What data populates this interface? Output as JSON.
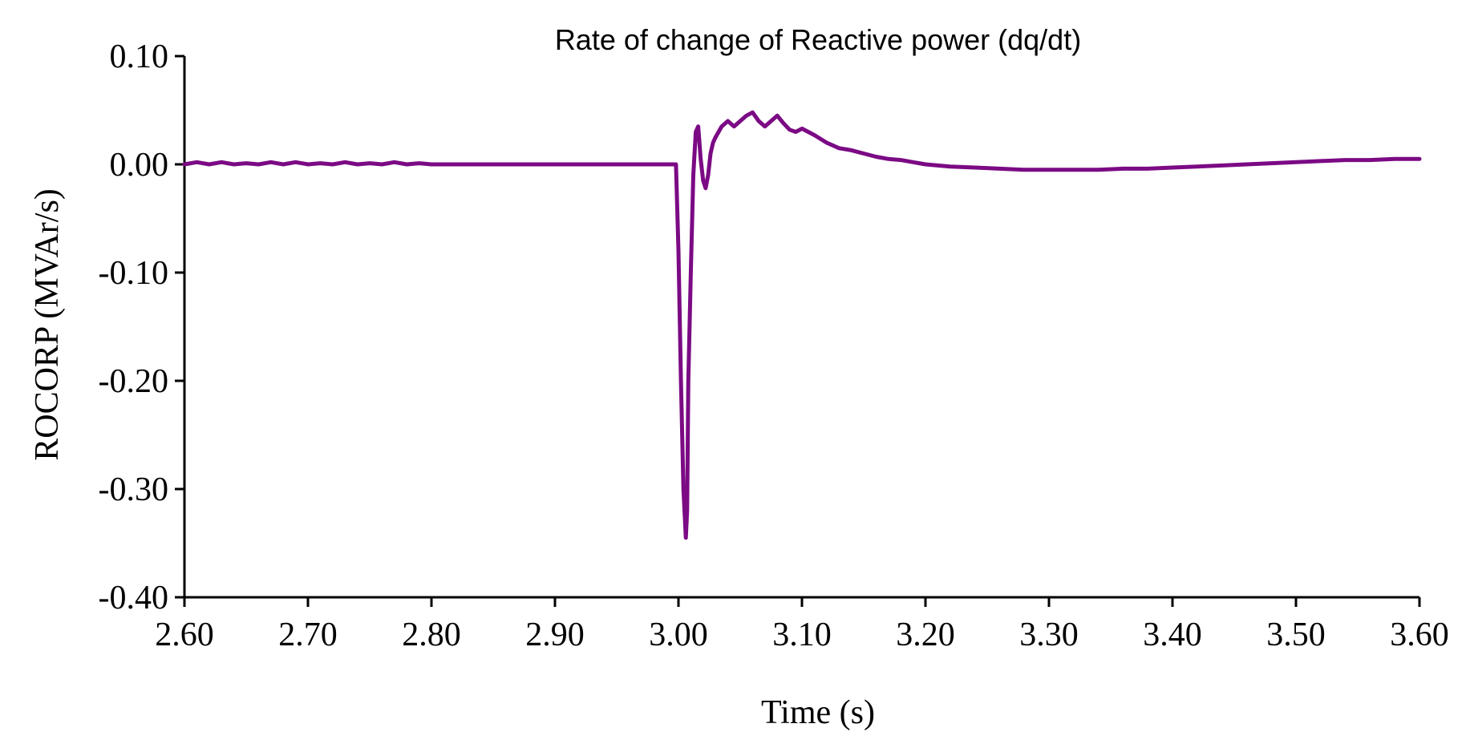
{
  "chart_data": {
    "type": "line",
    "title": "Rate of change of Reactive power (dq/dt)",
    "xlabel": "Time (s)",
    "ylabel": "ROCORP (MVAr/s)",
    "xlim": [
      2.6,
      3.6
    ],
    "ylim": [
      -0.4,
      0.1
    ],
    "x_ticks": [
      2.6,
      2.7,
      2.8,
      2.9,
      3.0,
      3.1,
      3.2,
      3.3,
      3.4,
      3.5,
      3.6
    ],
    "x_tick_labels": [
      "2.60",
      "2.70",
      "2.80",
      "2.90",
      "3.00",
      "3.10",
      "3.20",
      "3.30",
      "3.40",
      "3.50",
      "3.60"
    ],
    "y_ticks": [
      0.1,
      0.0,
      -0.1,
      -0.2,
      -0.3,
      -0.4
    ],
    "y_tick_labels": [
      "0.10",
      "0.00",
      "-0.10",
      "-0.20",
      "-0.30",
      "-0.40"
    ],
    "grid": false,
    "legend": "none",
    "colors": {
      "series": "#7b0a84",
      "axis": "#000000"
    },
    "series": [
      {
        "x": [
          2.6,
          2.61,
          2.62,
          2.63,
          2.64,
          2.65,
          2.66,
          2.67,
          2.68,
          2.69,
          2.7,
          2.71,
          2.72,
          2.73,
          2.74,
          2.75,
          2.76,
          2.77,
          2.78,
          2.79,
          2.8,
          2.82,
          2.84,
          2.86,
          2.88,
          2.9,
          2.92,
          2.94,
          2.96,
          2.98,
          2.998,
          3.0,
          3.002,
          3.004,
          3.006,
          3.007,
          3.008,
          3.01,
          3.012,
          3.014,
          3.016,
          3.018,
          3.02,
          3.022,
          3.024,
          3.026,
          3.028,
          3.03,
          3.035,
          3.04,
          3.045,
          3.05,
          3.055,
          3.06,
          3.065,
          3.07,
          3.075,
          3.08,
          3.085,
          3.09,
          3.095,
          3.1,
          3.11,
          3.12,
          3.13,
          3.14,
          3.15,
          3.16,
          3.17,
          3.18,
          3.19,
          3.2,
          3.22,
          3.24,
          3.26,
          3.28,
          3.3,
          3.32,
          3.34,
          3.36,
          3.38,
          3.4,
          3.42,
          3.44,
          3.46,
          3.48,
          3.5,
          3.52,
          3.54,
          3.56,
          3.58,
          3.6
        ],
        "values": [
          0.0,
          0.002,
          0.0,
          0.002,
          0.0,
          0.001,
          0.0,
          0.002,
          0.0,
          0.002,
          0.0,
          0.001,
          0.0,
          0.002,
          0.0,
          0.001,
          0.0,
          0.002,
          0.0,
          0.001,
          0.0,
          0.0,
          0.0,
          0.0,
          0.0,
          0.0,
          0.0,
          0.0,
          0.0,
          0.0,
          0.0,
          -0.08,
          -0.2,
          -0.3,
          -0.345,
          -0.32,
          -0.2,
          -0.1,
          -0.01,
          0.03,
          0.035,
          0.005,
          -0.015,
          -0.022,
          -0.01,
          0.01,
          0.02,
          0.025,
          0.035,
          0.04,
          0.035,
          0.04,
          0.045,
          0.048,
          0.04,
          0.035,
          0.04,
          0.045,
          0.038,
          0.032,
          0.03,
          0.033,
          0.027,
          0.02,
          0.015,
          0.013,
          0.01,
          0.007,
          0.005,
          0.004,
          0.002,
          0.0,
          -0.002,
          -0.003,
          -0.004,
          -0.005,
          -0.005,
          -0.005,
          -0.005,
          -0.004,
          -0.004,
          -0.003,
          -0.002,
          -0.001,
          0.0,
          0.001,
          0.002,
          0.003,
          0.004,
          0.004,
          0.005,
          0.005
        ]
      }
    ]
  }
}
